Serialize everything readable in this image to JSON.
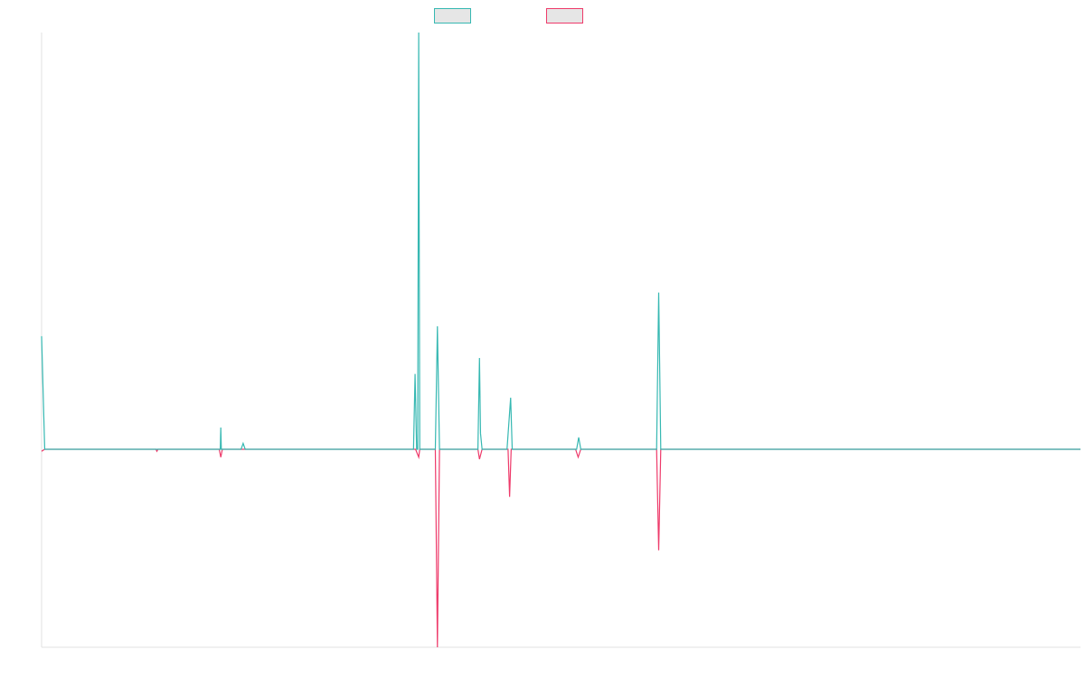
{
  "chart_data": {
    "type": "line",
    "title": "",
    "xlabel": "",
    "ylabel": "",
    "legend": {
      "placement": "top-center",
      "show_labels": false
    },
    "grid": false,
    "x_range": [
      0,
      1000
    ],
    "ylim": [
      -100,
      210
    ],
    "series": [
      {
        "color": "#36b8b2",
        "points": [
          [
            0,
            57
          ],
          [
            3,
            0
          ],
          [
            111,
            0
          ],
          [
            172,
            0
          ],
          [
            172.5,
            11
          ],
          [
            173,
            0
          ],
          [
            192,
            0
          ],
          [
            194,
            3
          ],
          [
            196,
            0
          ],
          [
            358,
            0
          ],
          [
            359.5,
            38
          ],
          [
            361,
            0
          ],
          [
            362,
            0
          ],
          [
            363,
            210
          ],
          [
            364,
            0
          ],
          [
            379,
            0
          ],
          [
            381,
            62
          ],
          [
            383,
            0
          ],
          [
            420,
            0
          ],
          [
            421.5,
            46
          ],
          [
            422.5,
            8
          ],
          [
            424,
            0
          ],
          [
            448,
            0
          ],
          [
            451.5,
            26
          ],
          [
            453,
            0
          ],
          [
            515,
            0
          ],
          [
            517,
            6
          ],
          [
            519,
            0
          ],
          [
            592,
            0
          ],
          [
            594,
            79
          ],
          [
            596,
            0
          ],
          [
            1000,
            0
          ]
        ]
      },
      {
        "color": "#ee3a6a",
        "points": [
          [
            0,
            -1
          ],
          [
            3,
            0
          ],
          [
            110,
            0
          ],
          [
            111,
            -1
          ],
          [
            112,
            0
          ],
          [
            171,
            0
          ],
          [
            172.5,
            -4
          ],
          [
            174,
            0
          ],
          [
            360,
            0
          ],
          [
            363,
            -4
          ],
          [
            364,
            0
          ],
          [
            379,
            0
          ],
          [
            381,
            -100
          ],
          [
            383,
            0
          ],
          [
            420,
            0
          ],
          [
            421.5,
            -5
          ],
          [
            424,
            0
          ],
          [
            449,
            0
          ],
          [
            450.5,
            -24
          ],
          [
            452,
            0
          ],
          [
            514,
            0
          ],
          [
            516.5,
            -4
          ],
          [
            519,
            0
          ],
          [
            592,
            0
          ],
          [
            594,
            -51
          ],
          [
            596,
            0
          ],
          [
            1000,
            0
          ]
        ]
      }
    ]
  }
}
